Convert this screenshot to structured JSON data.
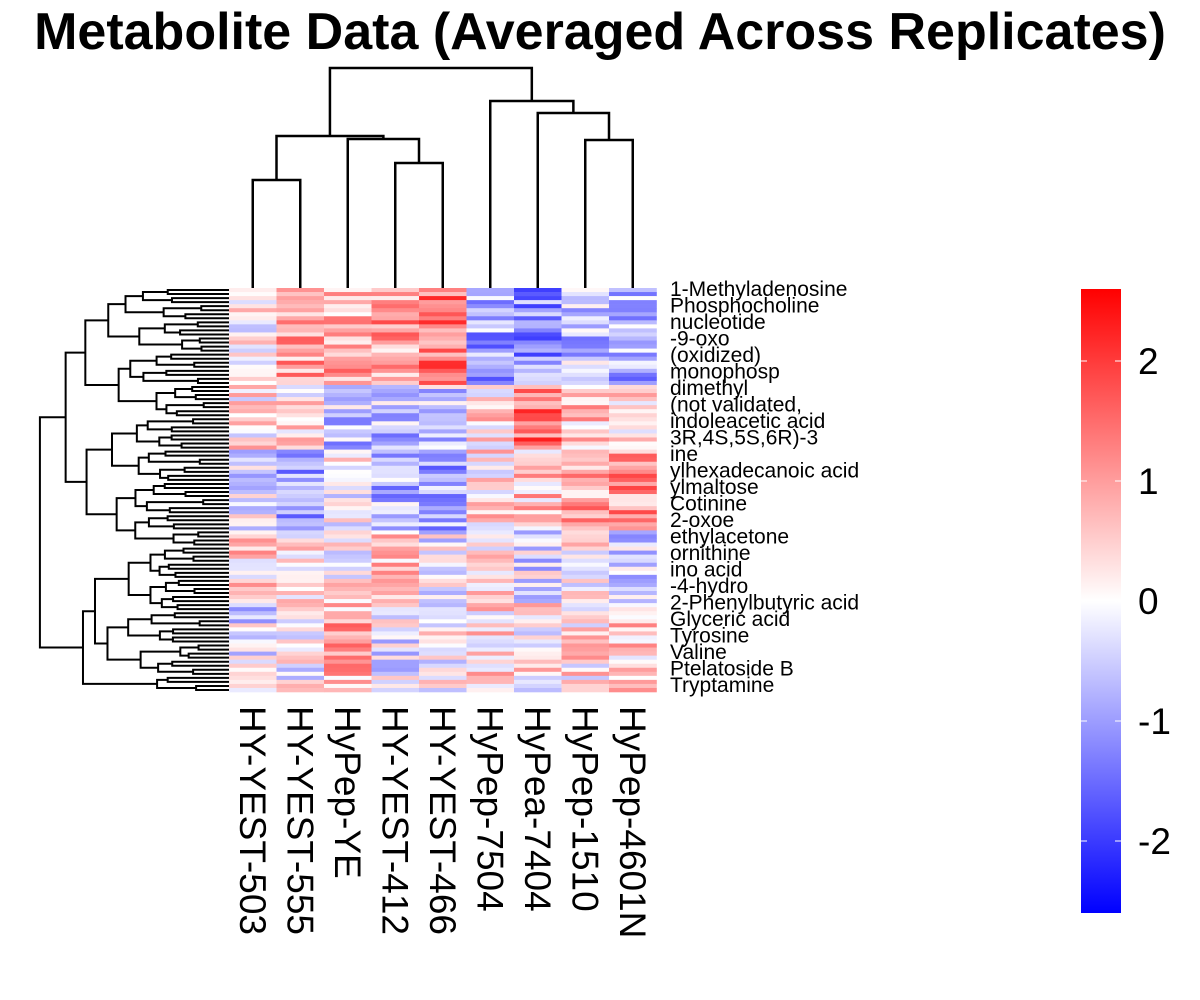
{
  "title": "Metabolite Data (Averaged Across Replicates)",
  "chart_data": {
    "type": "heatmap",
    "title": "Metabolite Data (Averaged Across Replicates)",
    "columns": [
      "HY-YEST-503",
      "HY-YEST-555",
      "HyPep-YE",
      "HY-YEST-412",
      "HY-YEST-466",
      "HyPep-7504",
      "HyPea-7404",
      "HyPep-1510",
      "HyPep-4601N"
    ],
    "row_count": 100,
    "visible_row_labels": [
      "1-Methyladenosine",
      "Phosphocholine",
      "nucleotide",
      "-9-oxo",
      "(oxidized)",
      "monophosp",
      "dimethyl",
      "(not validated,",
      "indoleacetic acid",
      "3R,4S,5S,6R)-3",
      "ine",
      "ylhexadecanoic acid",
      "ylmaltose",
      "Cotinine",
      "2-oxoe",
      "ethylacetone",
      "ornithine",
      "ino acid",
      "-4-hydro",
      "2-Phenylbutyric acid",
      "Glyceric acid",
      "Tyrosine",
      "Valine",
      "Ptelatoside B",
      "Tryptamine"
    ],
    "colorbar": {
      "ticks": [
        2,
        1,
        0,
        -1,
        -2
      ],
      "range": [
        -2.6,
        2.6
      ],
      "low_color": "#0000ff",
      "mid_color": "#ffffff",
      "high_color": "#ff0000"
    },
    "column_tree": "(((HY-YEST-503,HY-YEST-555),(HyPep-YE,(HY-YEST-412,HY-YEST-466))),(HyPep-7504,(HyPea-7404,(HyPep-1510,HyPep-4601N))))",
    "notes_values": "cell values are z-scores estimated per column in bands; individual rows are not legible"
  }
}
